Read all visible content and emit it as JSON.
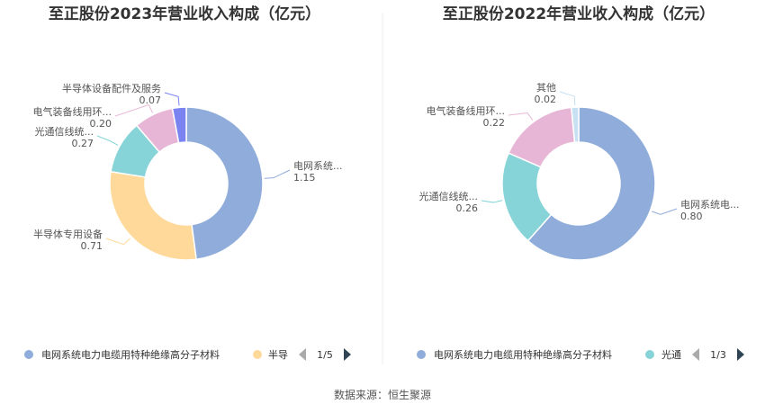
{
  "colors": {
    "blue": "#8FACDA",
    "orange": "#FFD99A",
    "teal": "#86D4D7",
    "pink": "#E7B6D6",
    "violet": "#7B83F0",
    "lightblue": "#C7E1F3"
  },
  "chart_data": [
    {
      "type": "pie",
      "donut": true,
      "title": "至正股份2023年营业收入构成（亿元）",
      "slices": [
        {
          "name": "电网系统电力电缆用特种绝缘高分子材料",
          "label": "电网系统...",
          "value": 1.15,
          "color": "#8FACDA"
        },
        {
          "name": "半导体专用设备",
          "label": "半导体专用设备",
          "value": 0.71,
          "color": "#FFD99A"
        },
        {
          "name": "光通信线缆",
          "label": "光通信线统...",
          "value": 0.27,
          "color": "#86D4D7"
        },
        {
          "name": "电气装备线用环保型高分子材料",
          "label": "电气装备线用环...",
          "value": 0.2,
          "color": "#E7B6D6"
        },
        {
          "name": "半导体设备配件及服务",
          "label": "半导体设备配件及服务",
          "value": 0.07,
          "color": "#7B83F0"
        }
      ],
      "legend": {
        "items": [
          "电网系统电力电缆用特种绝缘高分子材料",
          "半导"
        ],
        "page": "1/5",
        "position": "bottom"
      }
    },
    {
      "type": "pie",
      "donut": true,
      "title": "至正股份2022年营业收入构成（亿元）",
      "slices": [
        {
          "name": "电网系统电力电缆用特种绝缘高分子材料",
          "label": "电网系统电...",
          "value": 0.8,
          "color": "#8FACDA"
        },
        {
          "name": "光通信线缆",
          "label": "光通信线统...",
          "value": 0.26,
          "color": "#86D4D7"
        },
        {
          "name": "电气装备线用环保型高分子材料",
          "label": "电气装备线用环...",
          "value": 0.22,
          "color": "#E7B6D6"
        },
        {
          "name": "其他",
          "label": "其他",
          "value": 0.02,
          "color": "#C7E1F3"
        }
      ],
      "legend": {
        "items": [
          "电网系统电力电缆用特种绝缘高分子材料",
          "光通"
        ],
        "page": "1/3",
        "position": "bottom"
      }
    }
  ],
  "source": "数据来源：恒生聚源"
}
